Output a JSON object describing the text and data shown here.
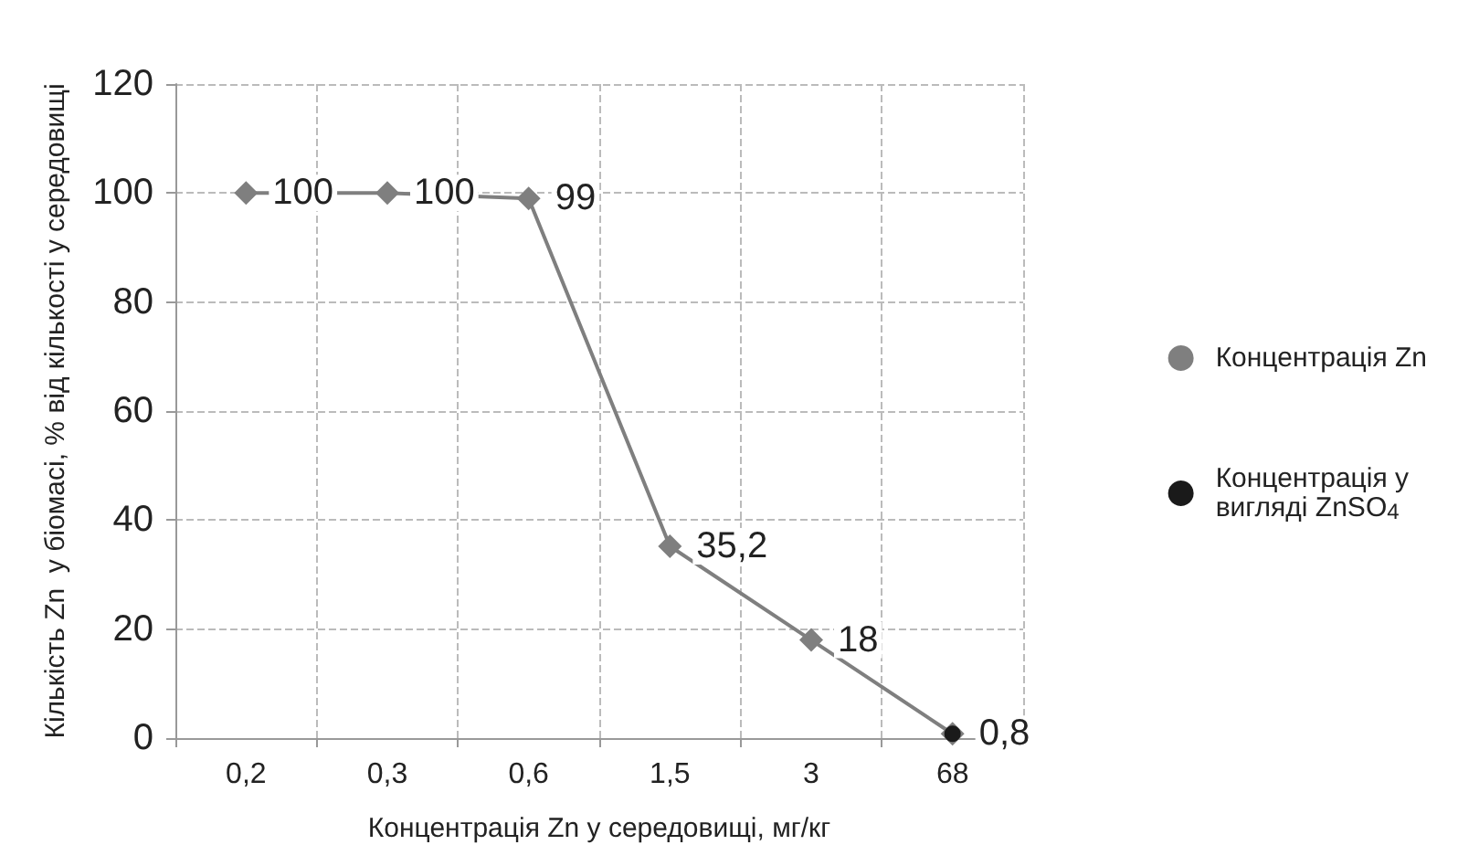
{
  "chart_data": {
    "type": "line",
    "xlabel": "Концентрація Zn у середовищі, мг/кг",
    "ylabel": "Кількість Zn  у біомасі, % від кількості у середовищі",
    "categories": [
      "0,2",
      "0,3",
      "0,6",
      "1,5",
      "3",
      "68"
    ],
    "series": [
      {
        "name": "Концентрація Zn",
        "color": "#7f7f7f",
        "marker": "diamond",
        "values": [
          100,
          100,
          99,
          35.2,
          18,
          0.8
        ],
        "value_labels": [
          "100",
          "100",
          "99",
          "35,2",
          "18",
          "0,8"
        ]
      },
      {
        "name": "Концентрація у вигляді ZnSO$_{4}$",
        "color": "#1a1a1a",
        "marker": "circle",
        "values": [
          null,
          null,
          null,
          null,
          null,
          0.8
        ],
        "value_labels": [
          null,
          null,
          null,
          null,
          null,
          null
        ]
      }
    ],
    "ylim": [
      0,
      120
    ],
    "yticks": [
      0,
      20,
      40,
      60,
      80,
      100,
      120
    ],
    "grid": true,
    "legend": "right",
    "line_style": "solid"
  }
}
